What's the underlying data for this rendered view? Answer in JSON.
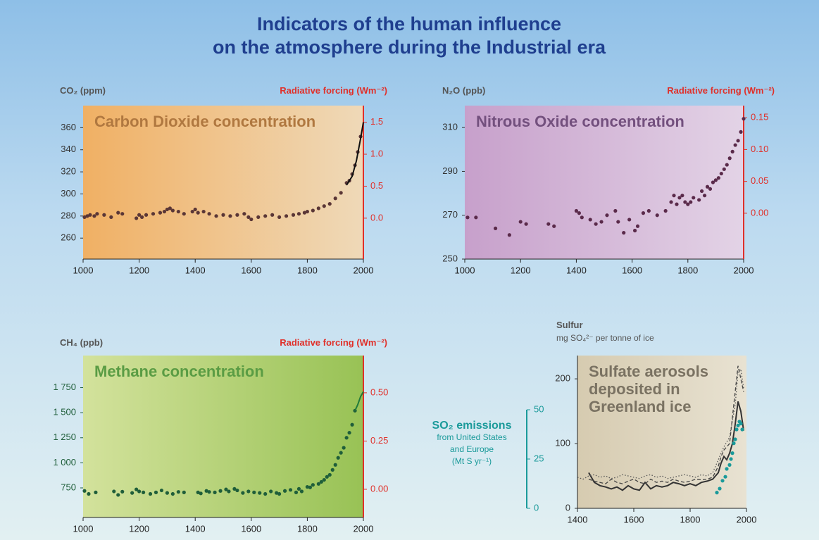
{
  "title": [
    "Indicators of the human influence",
    "on the atmosphere during the Industrial era"
  ],
  "chart_data": [
    {
      "type": "scatter",
      "title": [
        "Carbon Dioxide concentration"
      ],
      "ylabel": [
        "CO₂ (ppm)"
      ],
      "y2label": [
        "Radiative forcing (Wm⁻²)"
      ],
      "background": [
        "#f0b064",
        "#efd9b8"
      ],
      "title_color": "#b07840",
      "y2_color": "#e0302a",
      "xlim": [
        1000,
        2000
      ],
      "xticks": [
        1000,
        1200,
        1400,
        1600,
        1800,
        2000
      ],
      "ylim": [
        241,
        380
      ],
      "yticks": [
        260,
        280,
        300,
        320,
        340,
        360
      ],
      "y2lim": [
        -0.64,
        1.76
      ],
      "y2ticks": [
        {
          "value": 0,
          "label": "0.0"
        },
        0.5,
        {
          "value": 1,
          "label": "1.0"
        },
        1.5
      ],
      "series": [
        {
          "kind": "scatter",
          "color": "#5a3636",
          "x": [
            1005,
            1015,
            1025,
            1040,
            1050,
            1075,
            1100,
            1125,
            1140,
            1190,
            1200,
            1210,
            1225,
            1250,
            1275,
            1290,
            1300,
            1310,
            1320,
            1340,
            1360,
            1390,
            1400,
            1410,
            1430,
            1450,
            1475,
            1500,
            1525,
            1550,
            1575,
            1590,
            1600,
            1625,
            1650,
            1675,
            1700,
            1725,
            1750,
            1770,
            1790,
            1800,
            1820,
            1840,
            1860,
            1880,
            1900,
            1920,
            1940,
            1950,
            1960,
            1970,
            1980,
            1990
          ],
          "values": [
            279,
            280,
            281,
            280,
            282,
            281,
            279,
            283,
            282,
            278,
            281,
            279,
            281,
            282,
            283,
            284,
            286,
            287,
            285,
            284,
            282,
            284,
            286,
            283,
            284,
            282,
            280,
            281,
            280,
            281,
            282,
            279,
            277,
            279,
            280,
            281,
            279,
            280,
            281,
            282,
            283,
            284,
            285,
            287,
            289,
            291,
            296,
            301,
            310,
            312,
            318,
            326,
            338,
            352
          ]
        },
        {
          "kind": "line",
          "color": "#111111",
          "dash": "solid",
          "x": [
            1940,
            1960,
            1975,
            1990,
            2000
          ],
          "values": [
            308,
            316,
            330,
            350,
            365
          ]
        }
      ]
    },
    {
      "type": "scatter",
      "title": [
        "Nitrous Oxide concentration"
      ],
      "ylabel": [
        "N₂O (ppb)"
      ],
      "y2label": [
        "Radiative forcing (Wm⁻²)"
      ],
      "background": [
        "#c7a0cb",
        "#e3d3e6"
      ],
      "title_color": "#73507e",
      "y2_color": "#e0302a",
      "xlim": [
        1000,
        2000
      ],
      "xticks": [
        1000,
        1200,
        1400,
        1600,
        1800,
        2000
      ],
      "ylim": [
        250,
        320
      ],
      "yticks": [
        250,
        270,
        290,
        310
      ],
      "y2lim": [
        -0.072,
        0.169
      ],
      "y2ticks": [
        {
          "value": 0,
          "label": "0.00"
        },
        0.05,
        {
          "value": 0.1,
          "label": "0.10"
        },
        0.15
      ],
      "series": [
        {
          "kind": "scatter",
          "color": "#5a2a4a",
          "x": [
            1010,
            1040,
            1110,
            1160,
            1200,
            1220,
            1300,
            1320,
            1400,
            1410,
            1420,
            1450,
            1470,
            1490,
            1510,
            1540,
            1550,
            1570,
            1590,
            1610,
            1620,
            1640,
            1660,
            1690,
            1720,
            1740,
            1750,
            1760,
            1770,
            1780,
            1790,
            1800,
            1810,
            1820,
            1840,
            1850,
            1860,
            1870,
            1880,
            1890,
            1900,
            1910,
            1920,
            1930,
            1940,
            1950,
            1960,
            1970,
            1980,
            1990,
            2000
          ],
          "values": [
            269,
            269,
            264,
            261,
            267,
            266,
            266,
            265,
            272,
            271,
            269,
            268,
            266,
            267,
            270,
            272,
            267,
            262,
            268,
            263,
            265,
            271,
            272,
            270,
            272,
            276,
            279,
            275,
            278,
            279,
            276,
            275,
            276,
            278,
            277,
            281,
            279,
            283,
            282,
            285,
            286,
            287,
            289,
            291,
            293,
            296,
            299,
            302,
            304,
            308,
            314
          ]
        }
      ]
    },
    {
      "type": "scatter",
      "title": [
        "Methane concentration"
      ],
      "ylabel": [
        "CH₄ (ppb)"
      ],
      "y2label": [
        "Radiative forcing (Wm⁻²)"
      ],
      "background": [
        "#d3e29c",
        "#98c255"
      ],
      "title_color": "#5a9c44",
      "y2_color": "#e0302a",
      "xlim": [
        1000,
        2000
      ],
      "xticks": [
        1000,
        1200,
        1400,
        1600,
        1800,
        2000
      ],
      "ylim": [
        455,
        2070
      ],
      "yticks": [
        750,
        {
          "value": 1000,
          "label": "1 000"
        },
        {
          "value": 1250,
          "label": "1 250"
        },
        {
          "value": 1500,
          "label": "1 500"
        },
        {
          "value": 1750,
          "label": "1 750"
        }
      ],
      "y2lim": [
        -0.146,
        0.693
      ],
      "y2ticks": [
        {
          "value": 0,
          "label": "0.00"
        },
        0.25,
        {
          "value": 0.5,
          "label": "0.50"
        }
      ],
      "series": [
        {
          "kind": "scatter",
          "color": "#1f5e3a",
          "x": [
            1005,
            1020,
            1045,
            1110,
            1125,
            1140,
            1175,
            1190,
            1200,
            1215,
            1240,
            1260,
            1280,
            1300,
            1320,
            1340,
            1360,
            1410,
            1420,
            1440,
            1450,
            1470,
            1490,
            1510,
            1520,
            1540,
            1550,
            1570,
            1590,
            1610,
            1630,
            1650,
            1670,
            1690,
            1700,
            1720,
            1740,
            1760,
            1770,
            1780,
            1800,
            1810,
            1820,
            1840,
            1850,
            1860,
            1870,
            1880,
            1890,
            1900,
            1910,
            1920,
            1930,
            1940,
            1950,
            1960,
            1970
          ],
          "values": [
            720,
            690,
            705,
            715,
            680,
            712,
            700,
            735,
            715,
            705,
            690,
            705,
            725,
            700,
            690,
            710,
            705,
            705,
            695,
            720,
            710,
            705,
            720,
            735,
            715,
            740,
            725,
            700,
            715,
            705,
            700,
            690,
            715,
            700,
            690,
            720,
            730,
            705,
            740,
            715,
            760,
            755,
            780,
            790,
            810,
            830,
            860,
            880,
            930,
            980,
            1050,
            1100,
            1150,
            1250,
            1300,
            1380,
            1520
          ]
        },
        {
          "kind": "line",
          "color": "#1f7a3a",
          "dash": "solid",
          "x": [
            1970,
            1980,
            1990,
            2000
          ],
          "values": [
            1520,
            1580,
            1660,
            1710
          ]
        }
      ]
    },
    {
      "type": "line",
      "title": [
        "Sulfate aerosols",
        "deposited in",
        "Greenland ice"
      ],
      "ylabel": [
        "Sulfur",
        "mg SO₄²⁻ per tonne of ice"
      ],
      "y2label": [
        "SO₂ emissions",
        "from United States",
        "and Europe",
        "(Mt S yr⁻¹)"
      ],
      "background": [
        "#d6cbb0",
        "#e8e2d2"
      ],
      "title_color": "#7a7262",
      "y2_color": "#1a9a9a",
      "xlim": [
        1400,
        2000
      ],
      "xticks": [
        1400,
        1600,
        1800,
        2000
      ],
      "ylim": [
        0,
        236
      ],
      "yticks": [
        0,
        100,
        200
      ],
      "y2lim": [
        0,
        77.5
      ],
      "y2ticks": [
        0,
        25,
        50
      ],
      "series": [
        {
          "kind": "line",
          "color": "#333333",
          "dash": "solid",
          "x": [
            1440,
            1460,
            1480,
            1500,
            1520,
            1540,
            1560,
            1580,
            1600,
            1620,
            1640,
            1660,
            1680,
            1700,
            1720,
            1740,
            1760,
            1780,
            1800,
            1820,
            1840,
            1860,
            1880,
            1900,
            1910,
            1920,
            1930,
            1940,
            1950,
            1960,
            1970,
            1980,
            1990
          ],
          "values": [
            55,
            40,
            35,
            33,
            30,
            33,
            28,
            35,
            30,
            28,
            40,
            30,
            35,
            33,
            35,
            40,
            38,
            35,
            38,
            35,
            40,
            42,
            45,
            55,
            70,
            80,
            75,
            85,
            100,
            130,
            165,
            150,
            120
          ]
        },
        {
          "kind": "line",
          "color": "#444444",
          "dash": "dashed",
          "x": [
            1440,
            1460,
            1480,
            1500,
            1520,
            1540,
            1560,
            1580,
            1600,
            1620,
            1640,
            1660,
            1680,
            1700,
            1720,
            1740,
            1760,
            1780,
            1800,
            1820,
            1840,
            1860,
            1880,
            1900,
            1910,
            1920,
            1930,
            1940,
            1950,
            1960,
            1970,
            1980,
            1990
          ],
          "values": [
            45,
            42,
            40,
            38,
            45,
            40,
            38,
            42,
            45,
            40,
            38,
            45,
            40,
            42,
            40,
            45,
            42,
            40,
            42,
            45,
            44,
            45,
            48,
            65,
            80,
            90,
            95,
            100,
            140,
            180,
            220,
            200,
            180
          ]
        },
        {
          "kind": "line",
          "color": "#555555",
          "dash": "dotted",
          "x": [
            1400,
            1420,
            1440,
            1460,
            1480,
            1500,
            1520,
            1540,
            1560,
            1580,
            1600,
            1620,
            1640,
            1660,
            1680,
            1700,
            1720,
            1740,
            1760,
            1780,
            1800,
            1820,
            1840,
            1860,
            1880,
            1900,
            1920,
            1940,
            1960,
            1970,
            1980,
            1990
          ],
          "values": [
            48,
            45,
            50,
            52,
            48,
            50,
            46,
            48,
            52,
            50,
            48,
            46,
            50,
            52,
            48,
            50,
            46,
            48,
            50,
            52,
            50,
            48,
            52,
            50,
            55,
            75,
            95,
            110,
            160,
            210,
            215,
            185
          ]
        },
        {
          "kind": "scatter",
          "color": "#1a9a9a",
          "axis": "y2",
          "x": [
            1895,
            1905,
            1915,
            1925,
            1930,
            1940,
            1945,
            1950,
            1955,
            1960,
            1965,
            1970,
            1975,
            1980,
            1985
          ],
          "values": [
            8,
            10,
            14,
            16,
            20,
            22,
            25,
            28,
            33,
            35,
            40,
            42,
            44,
            43,
            40
          ]
        }
      ]
    }
  ]
}
